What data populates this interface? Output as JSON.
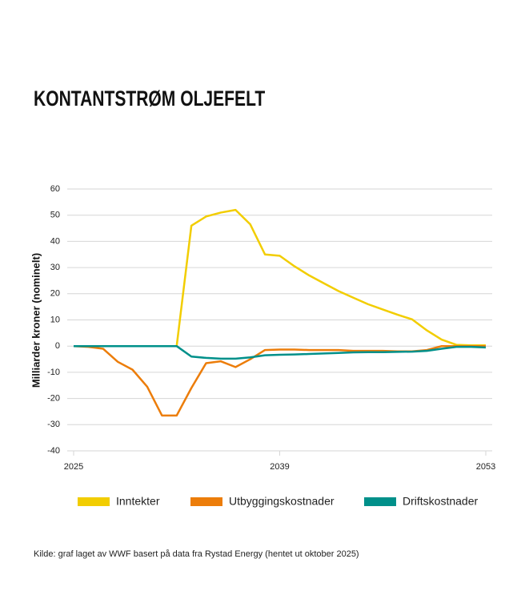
{
  "chart_data": {
    "type": "line",
    "title": "KONTANTSTRØM OLJEFELT",
    "y_label": "Milliarder kroner (nominelt)",
    "source": "Kilde: graf laget av WWF basert på data fra Rystad Energy (hentet ut oktober 2025)",
    "x": [
      2025,
      2026,
      2027,
      2028,
      2029,
      2030,
      2031,
      2032,
      2033,
      2034,
      2035,
      2036,
      2037,
      2038,
      2039,
      2040,
      2041,
      2042,
      2043,
      2044,
      2045,
      2046,
      2047,
      2048,
      2049,
      2050,
      2051,
      2052,
      2053
    ],
    "xlim": [
      2025,
      2053
    ],
    "xticks": [
      2025,
      2039,
      2053
    ],
    "ylim": [
      -40,
      60
    ],
    "yticks": [
      60,
      50,
      40,
      30,
      20,
      10,
      0,
      -10,
      -20,
      -30,
      -40
    ],
    "grid": true,
    "legend": "bottom",
    "series": [
      {
        "name": "Inntekter",
        "color": "#f2cd00",
        "values": [
          0,
          0,
          0,
          0,
          0,
          0,
          0,
          0,
          46,
          49.5,
          51,
          52,
          46.5,
          35,
          34.5,
          30.5,
          27,
          24,
          21,
          18.5,
          16,
          14,
          12,
          10.2,
          6,
          2.5,
          0.5,
          0.3,
          0.3
        ]
      },
      {
        "name": "Utbyggingskostnader",
        "color": "#ec7d0a",
        "values": [
          0,
          -0.3,
          -1,
          -6,
          -9,
          -15.5,
          -26.5,
          -26.5,
          -16,
          -6.5,
          -5.8,
          -8,
          -5,
          -1.5,
          -1.3,
          -1.3,
          -1.5,
          -1.5,
          -1.5,
          -1.8,
          -1.8,
          -1.8,
          -2,
          -2,
          -1.5,
          0,
          0,
          0,
          0
        ]
      },
      {
        "name": "Driftskostnader",
        "color": "#00908a",
        "values": [
          0,
          0,
          0,
          0,
          0,
          0,
          0,
          0,
          -4,
          -4.5,
          -4.8,
          -4.8,
          -4.3,
          -3.5,
          -3.3,
          -3.2,
          -3,
          -2.8,
          -2.6,
          -2.4,
          -2.3,
          -2.3,
          -2.2,
          -2.1,
          -1.8,
          -1,
          -0.3,
          -0.3,
          -0.5
        ]
      }
    ]
  }
}
